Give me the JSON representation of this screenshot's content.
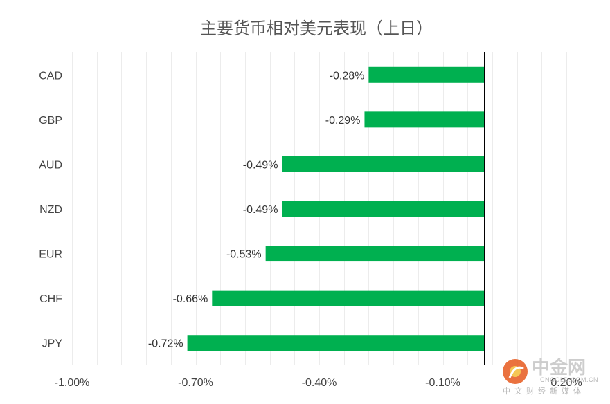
{
  "chart_data": {
    "type": "bar",
    "orientation": "horizontal",
    "title": "主要货币相对美元表现（上日）",
    "categories": [
      "CAD",
      "GBP",
      "AUD",
      "NZD",
      "EUR",
      "CHF",
      "JPY"
    ],
    "series": [
      {
        "values": [
          -0.28,
          -0.29,
          -0.49,
          -0.49,
          -0.53,
          -0.66,
          -0.72
        ],
        "labels": [
          "-0.28%",
          "-0.29%",
          "-0.49%",
          "-0.49%",
          "-0.53%",
          "-0.66%",
          "-0.72%"
        ],
        "color": "#00b050"
      }
    ],
    "x_ticks": [
      -1.0,
      -0.7,
      -0.4,
      -0.1,
      0.2
    ],
    "x_tick_labels": [
      "-1.00%",
      "-0.70%",
      "-0.40%",
      "-0.10%",
      "0.20%"
    ],
    "xlim": [
      -1.0,
      0.2
    ],
    "grid": true,
    "grid_step": 0.06,
    "legend": "none"
  },
  "watermark": {
    "logo_text": "中金网",
    "url": "CNGOLD.COM.CN",
    "subtitle": "中文财经新媒体",
    "color": "#e8632b"
  }
}
